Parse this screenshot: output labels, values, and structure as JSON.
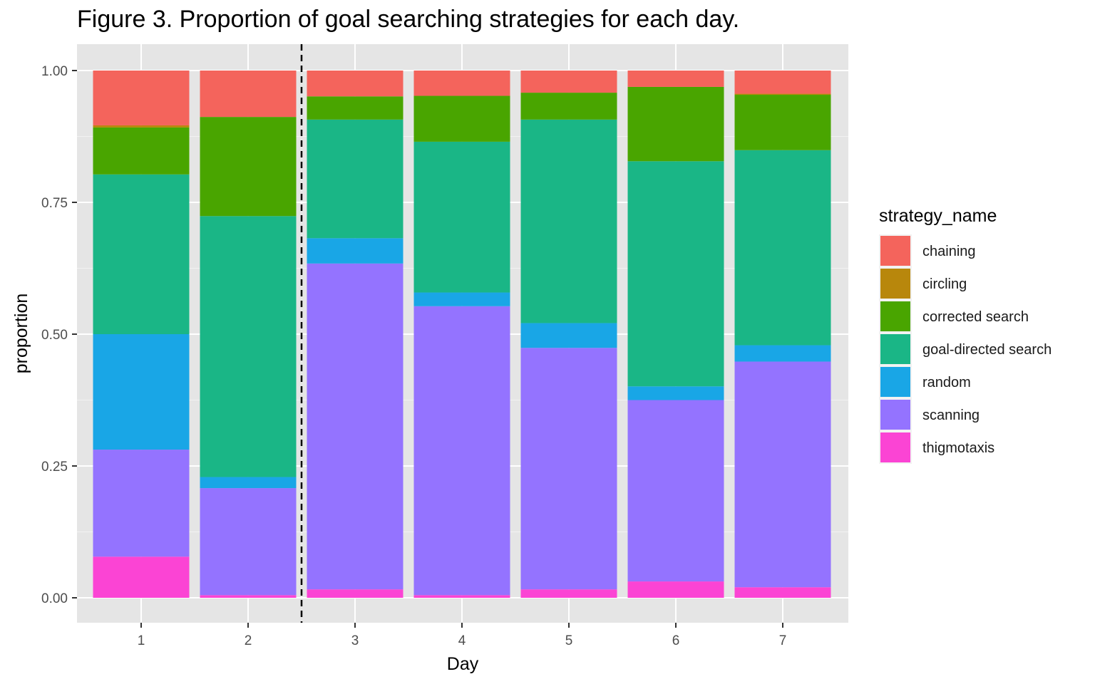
{
  "chart_data": {
    "type": "bar",
    "stacked": true,
    "title": "Figure 3. Proportion of goal searching strategies for each day.",
    "xlabel": "Day",
    "ylabel": "proportion",
    "categories": [
      "1",
      "2",
      "3",
      "4",
      "5",
      "6",
      "7"
    ],
    "ylim": [
      -0.045,
      1.045
    ],
    "yticks": [
      "0.00",
      "0.25",
      "0.50",
      "0.75",
      "1.00"
    ],
    "yticks_values": [
      0,
      0.25,
      0.5,
      0.75,
      1.0
    ],
    "grid": true,
    "background": "#e5e5e5",
    "vline_between_days": [
      2,
      3
    ],
    "legend": {
      "title": "strategy_name",
      "position": "right"
    },
    "series": [
      {
        "name": "thigmotaxis",
        "color": "#fb44d4",
        "values": [
          0.078,
          0.005,
          0.016,
          0.005,
          0.016,
          0.031,
          0.02
        ]
      },
      {
        "name": "scanning",
        "color": "#9473ff",
        "values": [
          0.203,
          0.203,
          0.618,
          0.548,
          0.458,
          0.344,
          0.428
        ]
      },
      {
        "name": "random",
        "color": "#19a6e6",
        "values": [
          0.219,
          0.021,
          0.048,
          0.026,
          0.047,
          0.026,
          0.031
        ]
      },
      {
        "name": "goal-directed search",
        "color": "#1ab686",
        "values": [
          0.303,
          0.495,
          0.225,
          0.286,
          0.386,
          0.427,
          0.37
        ]
      },
      {
        "name": "corrected search",
        "color": "#49a500",
        "values": [
          0.089,
          0.188,
          0.044,
          0.087,
          0.051,
          0.141,
          0.105
        ]
      },
      {
        "name": "circling",
        "color": "#b8870c",
        "values": [
          0.004,
          0.0,
          0.0,
          0.0,
          0.0,
          0.0,
          0.002
        ]
      },
      {
        "name": "chaining",
        "color": "#f4645c",
        "values": [
          0.104,
          0.088,
          0.049,
          0.048,
          0.042,
          0.031,
          0.044
        ]
      }
    ]
  }
}
